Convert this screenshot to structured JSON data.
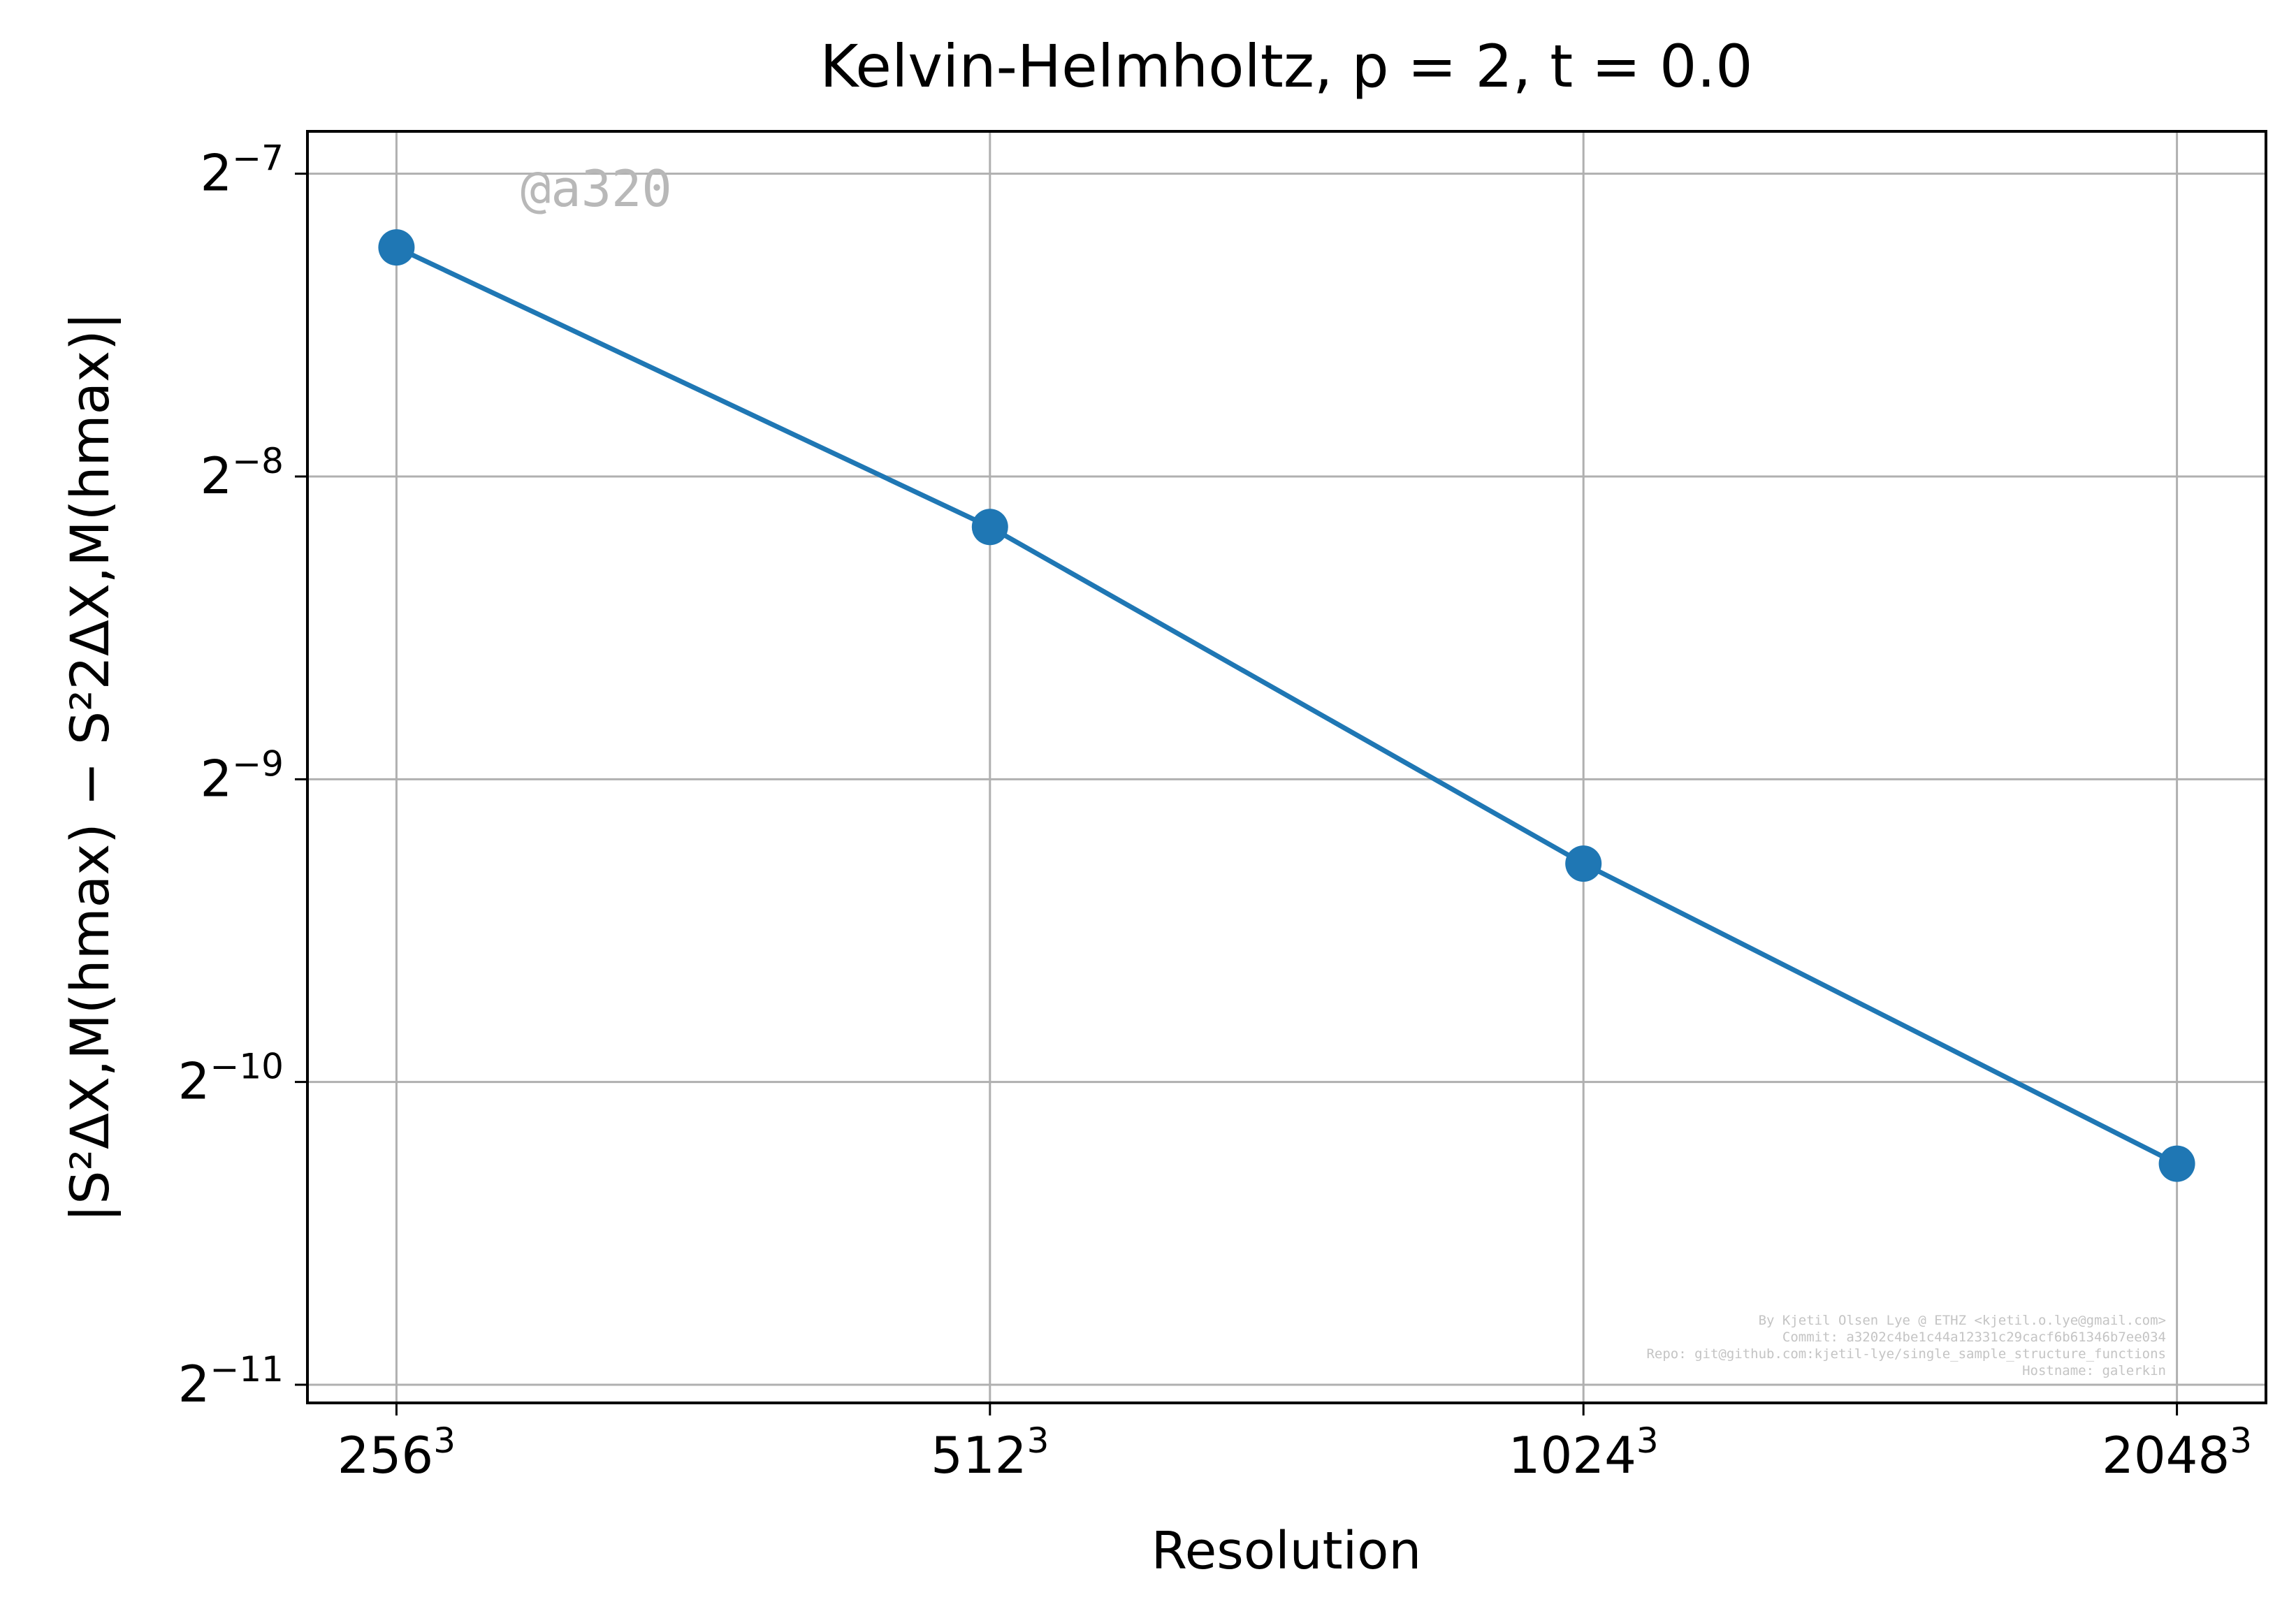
{
  "chart_data": {
    "type": "line",
    "title": "Kelvin-Helmholtz, p = 2, t = 0.0",
    "xlabel": "Resolution",
    "ylabel": "|S²ΔX,M(hmax) − S²2ΔX,M(hmax)|",
    "x_scale": "log2",
    "y_scale": "log2",
    "categories": [
      "256",
      "512",
      "1024",
      "2048"
    ],
    "x": [
      256,
      512,
      1024,
      2048
    ],
    "x_tick_exponent": "3",
    "y_ticks": [
      {
        "base": "2",
        "exp": "−7",
        "value": 0.0078125
      },
      {
        "base": "2",
        "exp": "−8",
        "value": 0.00390625
      },
      {
        "base": "2",
        "exp": "−9",
        "value": 0.001953125
      },
      {
        "base": "2",
        "exp": "−10",
        "value": 0.0009765625
      },
      {
        "base": "2",
        "exp": "−11",
        "value": 0.00048828125
      }
    ],
    "ylim_exp": [
      -11.06,
      -6.86
    ],
    "xlim_log2": [
      7.85,
      11.15
    ],
    "series": [
      {
        "values": [
          0.0066,
          0.00348,
          0.00161,
          0.00081
        ],
        "color": "#1f77b4",
        "marker": "circle"
      }
    ],
    "grid": true,
    "legend": "none"
  },
  "watermark": "@a320",
  "footer": {
    "lines": [
      "By Kjetil Olsen Lye @ ETHZ <kjetil.o.lye@gmail.com>",
      "Commit: a3202c4be1c44a12331c29cacf6b61346b7ee034",
      "Repo: git@github.com:kjetil-lye/single_sample_structure_functions",
      "Hostname: galerkin"
    ]
  },
  "colors": {
    "series": "#1f77b4",
    "grid": "#b0b0b0",
    "axes": "#000000",
    "watermark": "#b8b8b8",
    "footer": "#c4c4c4"
  }
}
